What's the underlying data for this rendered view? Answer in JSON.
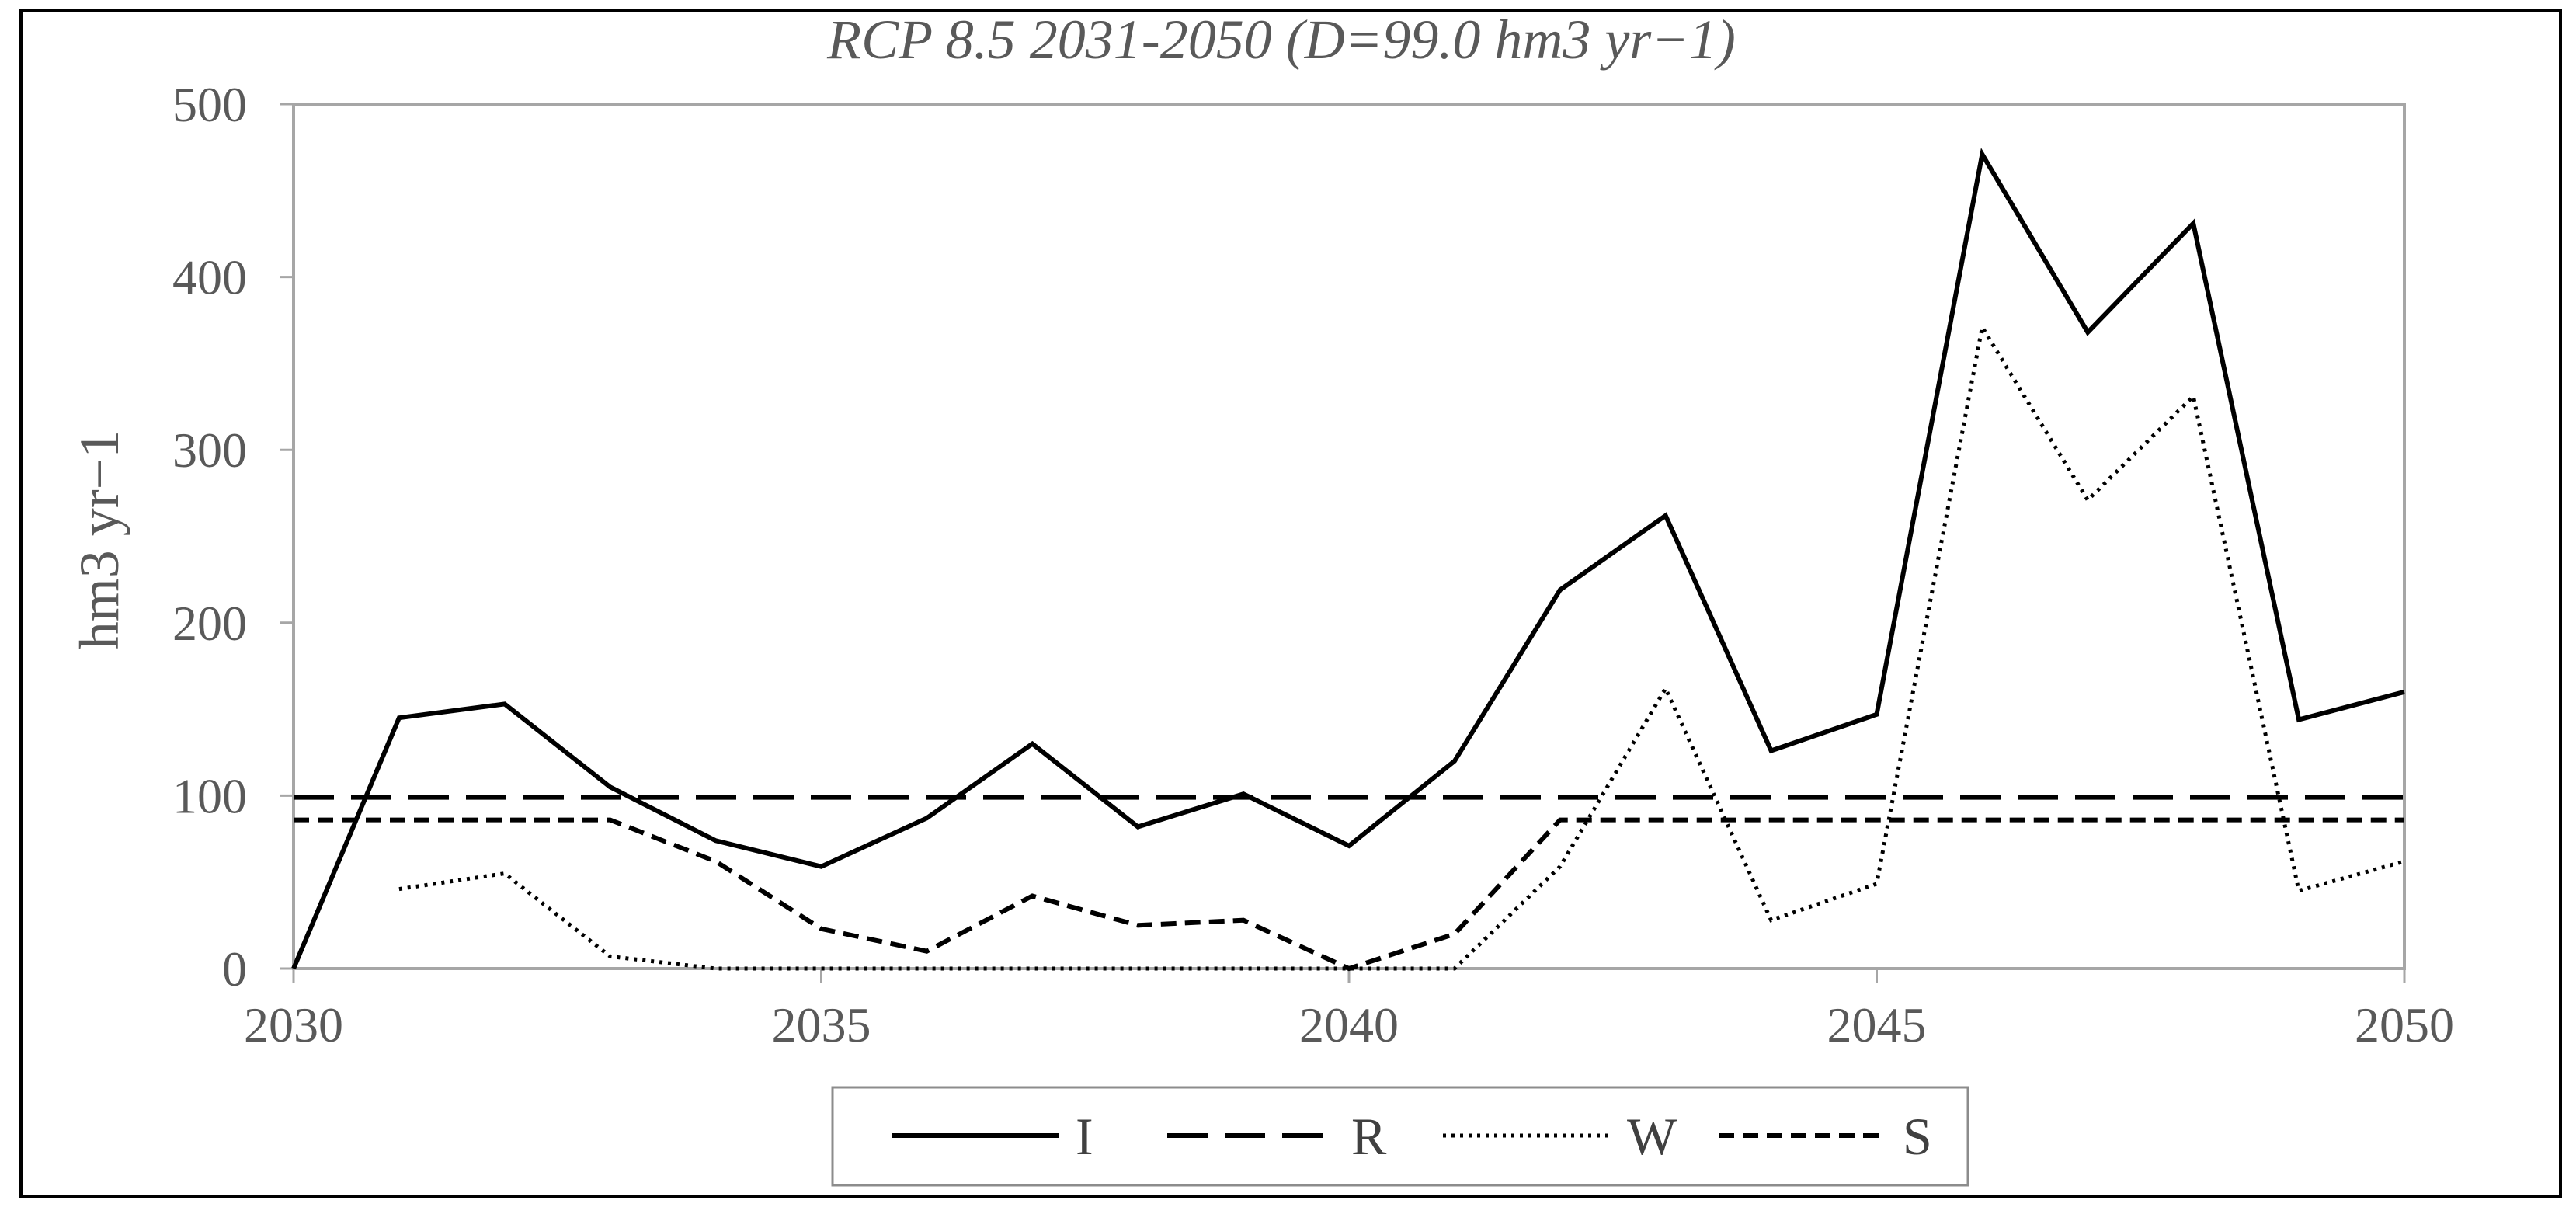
{
  "chart_data": {
    "type": "line",
    "title": "RCP 8.5 2031-2050 (D=99.0 hm3 yr−1)",
    "xlabel": "",
    "ylabel": "hm3 yr−1",
    "xlim": [
      2030,
      2050
    ],
    "ylim": [
      0,
      500
    ],
    "x_ticks": [
      2030,
      2035,
      2040,
      2045,
      2050
    ],
    "y_ticks": [
      0,
      100,
      200,
      300,
      400,
      500
    ],
    "grid": false,
    "legend_position": "bottom",
    "series": [
      {
        "name": "I",
        "style": "solid",
        "color": "#000000",
        "x": [
          2030,
          2031,
          2032,
          2033,
          2034,
          2035,
          2036,
          2037,
          2038,
          2039,
          2040,
          2041,
          2042,
          2043,
          2044,
          2045,
          2046,
          2047,
          2048,
          2049,
          2050
        ],
        "y": [
          0,
          145,
          153,
          105,
          74,
          59,
          87,
          130,
          82,
          101,
          71,
          120,
          219,
          262,
          126,
          147,
          471,
          368,
          431,
          144,
          160
        ]
      },
      {
        "name": "R",
        "style": "long-dash",
        "color": "#000000",
        "x": [
          2030,
          2050
        ],
        "y": [
          99,
          99
        ]
      },
      {
        "name": "W",
        "style": "dotted",
        "color": "#000000",
        "x": [
          2031,
          2032,
          2033,
          2034,
          2035,
          2036,
          2037,
          2038,
          2039,
          2040,
          2041,
          2042,
          2043,
          2044,
          2045,
          2046,
          2047,
          2048,
          2049,
          2050
        ],
        "y": [
          46,
          55,
          7,
          0,
          0,
          0,
          0,
          0,
          0,
          0,
          0,
          59,
          162,
          28,
          49,
          371,
          271,
          331,
          45,
          62
        ]
      },
      {
        "name": "S",
        "style": "short-dash",
        "color": "#000000",
        "x": [
          2030,
          2031,
          2032,
          2033,
          2034,
          2035,
          2036,
          2037,
          2038,
          2039,
          2040,
          2041,
          2042,
          2043,
          2044,
          2045,
          2046,
          2047,
          2048,
          2049,
          2050
        ],
        "y": [
          86,
          86,
          86,
          86,
          62,
          23,
          10,
          42,
          25,
          28,
          0,
          20,
          86,
          86,
          86,
          86,
          86,
          86,
          86,
          86,
          86
        ]
      }
    ]
  }
}
